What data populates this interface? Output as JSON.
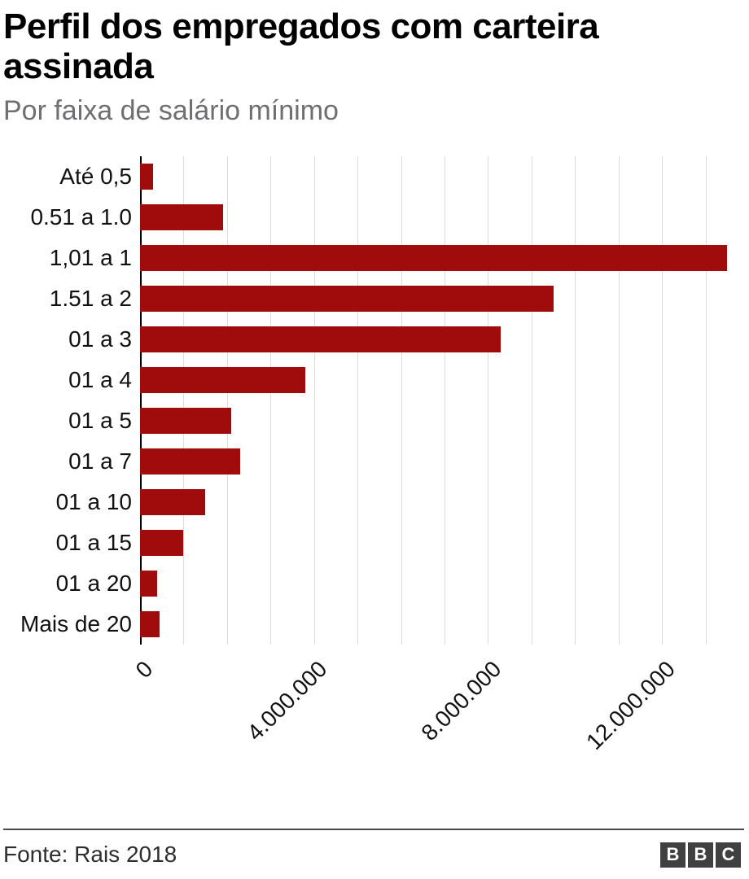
{
  "header": {
    "title": "Perfil dos empregados com carteira assinada",
    "subtitle": "Por faixa de salário mínimo"
  },
  "chart_data": {
    "type": "bar",
    "orientation": "horizontal",
    "title": "Perfil dos empregados com carteira assinada",
    "subtitle": "Por faixa de salário mínimo",
    "categories": [
      "Até 0,5",
      "0.51 a 1.0",
      "1,01 a 1",
      "1.51 a 2",
      "01 a 3",
      "01 a 4",
      "01 a 5",
      "01 a 7",
      "01 a 10",
      "01 a 15",
      "01 a 20",
      "Mais de 20"
    ],
    "values": [
      300000,
      1900000,
      13500000,
      9500000,
      8300000,
      3800000,
      2100000,
      2300000,
      1500000,
      1000000,
      400000,
      450000
    ],
    "xlim": [
      0,
      14000000
    ],
    "grid_step": 1000000,
    "grid": true,
    "bar_color": "#a00b0b",
    "grid_color": "#dcdcdc",
    "x_ticks": [
      {
        "value": 0,
        "label": "0"
      },
      {
        "value": 4000000,
        "label": "4.000.000"
      },
      {
        "value": 8000000,
        "label": "8.000.000"
      },
      {
        "value": 12000000,
        "label": "12.000.000"
      }
    ]
  },
  "footer": {
    "source": "Fonte: Rais 2018",
    "logo_letters": [
      "B",
      "B",
      "C"
    ]
  }
}
